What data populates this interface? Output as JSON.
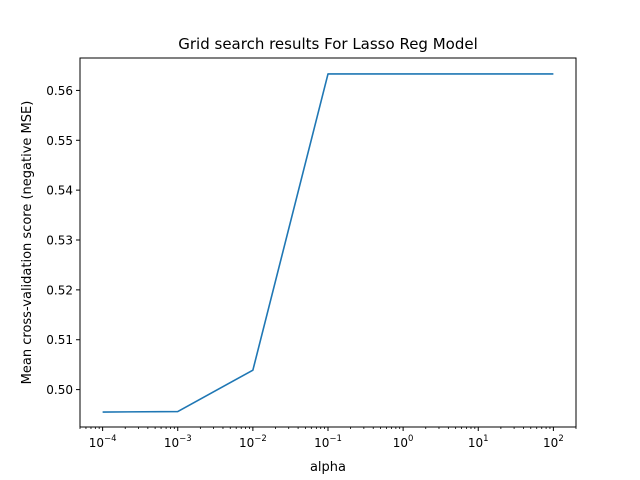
{
  "chart_data": {
    "type": "line",
    "title": "Grid search results For Lasso Reg Model",
    "xlabel": "alpha",
    "ylabel": "Mean cross-validation score (negative MSE)",
    "xscale": "log",
    "xlim": [
      5e-05,
      200
    ],
    "ylim": [
      0.4925,
      0.5665
    ],
    "grid": false,
    "x_ticks": [
      {
        "value": 0.0001,
        "base": "10",
        "exp": "−4"
      },
      {
        "value": 0.001,
        "base": "10",
        "exp": "−3"
      },
      {
        "value": 0.01,
        "base": "10",
        "exp": "−2"
      },
      {
        "value": 0.1,
        "base": "10",
        "exp": "−1"
      },
      {
        "value": 1,
        "base": "10",
        "exp": "0"
      },
      {
        "value": 10,
        "base": "10",
        "exp": "1"
      },
      {
        "value": 100,
        "base": "10",
        "exp": "2"
      }
    ],
    "y_ticks": [
      {
        "value": 0.5,
        "label": "0.50"
      },
      {
        "value": 0.51,
        "label": "0.51"
      },
      {
        "value": 0.52,
        "label": "0.52"
      },
      {
        "value": 0.53,
        "label": "0.53"
      },
      {
        "value": 0.54,
        "label": "0.54"
      },
      {
        "value": 0.55,
        "label": "0.55"
      },
      {
        "value": 0.56,
        "label": "0.56"
      }
    ],
    "series": [
      {
        "color": "#1f77b4",
        "x": [
          0.0001,
          0.001,
          0.01,
          0.1,
          1,
          10,
          100
        ],
        "y": [
          0.4955,
          0.4956,
          0.5039,
          0.5633,
          0.5633,
          0.5633,
          0.5633
        ]
      }
    ]
  }
}
